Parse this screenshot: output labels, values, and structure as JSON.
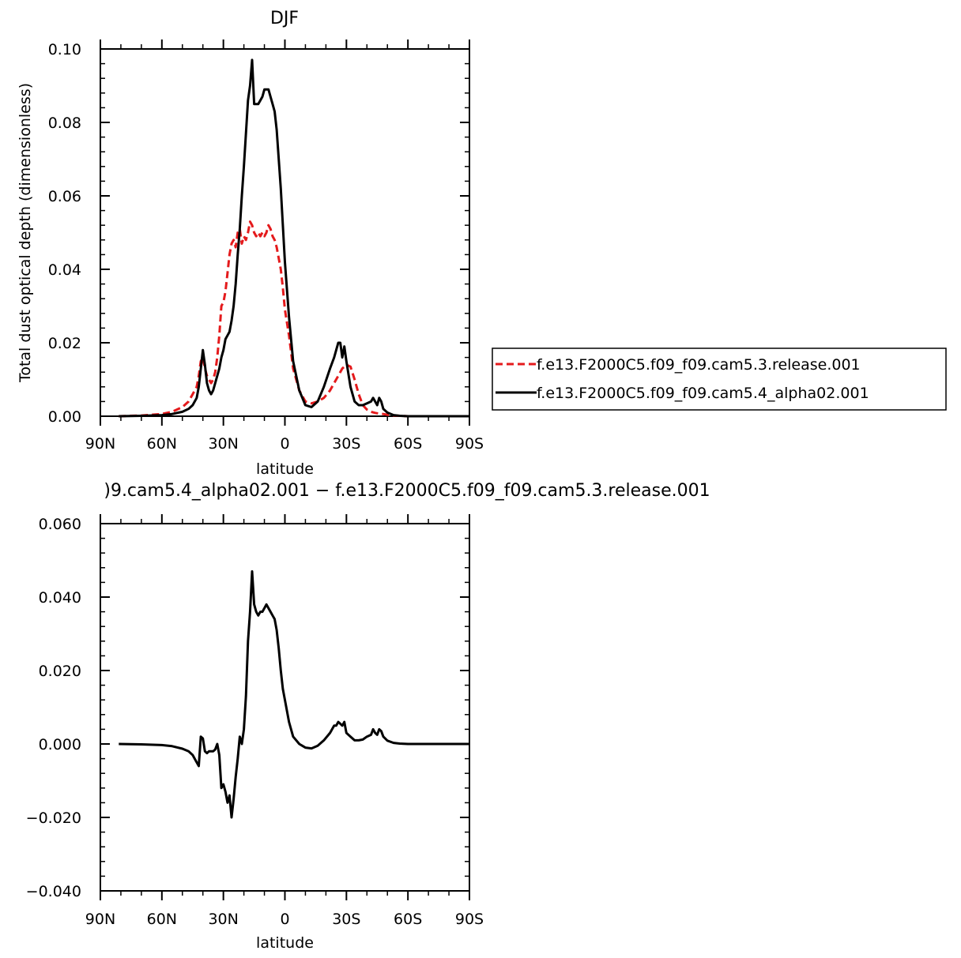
{
  "chart_data": [
    {
      "type": "line",
      "title": "DJF",
      "xlabel": "latitude",
      "ylabel": "Total dust optical depth (dimensionless)",
      "xlim": [
        90,
        -90
      ],
      "ylim": [
        0.0,
        0.1
      ],
      "xticks": [
        90,
        60,
        30,
        0,
        -30,
        -60,
        -90
      ],
      "xtick_labels": [
        "90N",
        "60N",
        "30N",
        "0",
        "30S",
        "60S",
        "90S"
      ],
      "yticks": [
        0.0,
        0.02,
        0.04,
        0.06,
        0.08,
        0.1
      ],
      "ytick_labels": [
        "0.00",
        "0.02",
        "0.04",
        "0.06",
        "0.08",
        "0.10"
      ],
      "legend_position": "right",
      "series": [
        {
          "name": "f.e13.F2000C5.f09_f09.cam5.3.release.001",
          "color": "#e41a1c",
          "style": "dashed",
          "x": [
            81,
            70,
            60,
            55,
            50,
            47,
            45,
            43,
            42,
            41,
            40,
            39,
            38,
            37,
            36,
            35,
            34,
            33,
            32,
            31,
            30,
            29,
            28,
            27,
            26,
            25,
            24,
            23,
            22,
            21,
            20,
            19,
            18,
            17,
            16,
            15,
            14,
            13,
            12,
            11,
            10,
            9,
            8,
            7,
            6,
            5,
            4,
            3,
            2,
            1,
            0,
            -2,
            -4,
            -7,
            -10,
            -13,
            -16,
            -19,
            -22,
            -24,
            -26,
            -28,
            -30,
            -32,
            -34,
            -36,
            -38,
            -40,
            -42,
            -44,
            -46,
            -48,
            -50,
            -53,
            -56,
            -60,
            -70,
            -80,
            -90
          ],
          "y": [
            0.0,
            0.0002,
            0.0006,
            0.0012,
            0.0025,
            0.004,
            0.006,
            0.008,
            0.011,
            0.015,
            0.016,
            0.013,
            0.011,
            0.01,
            0.009,
            0.01,
            0.012,
            0.016,
            0.022,
            0.03,
            0.031,
            0.034,
            0.039,
            0.044,
            0.047,
            0.048,
            0.046,
            0.05,
            0.051,
            0.047,
            0.049,
            0.048,
            0.05,
            0.053,
            0.052,
            0.05,
            0.049,
            0.05,
            0.049,
            0.05,
            0.049,
            0.05,
            0.052,
            0.051,
            0.049,
            0.048,
            0.046,
            0.043,
            0.04,
            0.035,
            0.029,
            0.022,
            0.013,
            0.007,
            0.004,
            0.0035,
            0.004,
            0.005,
            0.007,
            0.009,
            0.011,
            0.013,
            0.014,
            0.0135,
            0.01,
            0.006,
            0.003,
            0.0018,
            0.0012,
            0.0009,
            0.0007,
            0.0006,
            0.0004,
            0.0002,
            0.0001,
            0.0,
            0.0,
            0.0,
            0.0
          ]
        },
        {
          "name": "f.e13.F2000C5.f09_f09.cam5.4_alpha02.001",
          "color": "#000000",
          "style": "solid",
          "x": [
            81,
            70,
            60,
            55,
            50,
            47,
            45,
            43,
            42,
            41,
            40,
            39,
            38,
            37,
            36,
            35,
            34,
            33,
            32,
            31,
            30,
            29,
            28,
            27,
            26,
            25,
            24,
            23,
            22,
            21,
            20,
            19,
            18,
            17,
            16,
            15,
            14,
            13,
            12,
            11,
            10,
            9,
            8,
            7,
            6,
            5,
            4,
            3,
            2,
            1,
            0,
            -2,
            -4,
            -7,
            -10,
            -13,
            -16,
            -19,
            -22,
            -24,
            -25,
            -26,
            -27,
            -28,
            -29,
            -30,
            -32,
            -34,
            -36,
            -38,
            -40,
            -42,
            -43,
            -44,
            -45,
            -46,
            -47,
            -48,
            -50,
            -53,
            -56,
            -60,
            -70,
            -80,
            -90
          ],
          "y": [
            0.0,
            0.0001,
            0.0003,
            0.0006,
            0.0012,
            0.002,
            0.003,
            0.005,
            0.008,
            0.013,
            0.018,
            0.014,
            0.009,
            0.007,
            0.006,
            0.007,
            0.009,
            0.011,
            0.013,
            0.016,
            0.018,
            0.021,
            0.022,
            0.023,
            0.026,
            0.03,
            0.036,
            0.044,
            0.051,
            0.06,
            0.068,
            0.077,
            0.086,
            0.09,
            0.097,
            0.085,
            0.085,
            0.085,
            0.086,
            0.087,
            0.089,
            0.089,
            0.089,
            0.087,
            0.085,
            0.083,
            0.078,
            0.07,
            0.062,
            0.052,
            0.042,
            0.027,
            0.015,
            0.007,
            0.003,
            0.0025,
            0.004,
            0.008,
            0.013,
            0.016,
            0.018,
            0.02,
            0.02,
            0.016,
            0.019,
            0.015,
            0.008,
            0.004,
            0.003,
            0.003,
            0.0035,
            0.004,
            0.005,
            0.004,
            0.003,
            0.005,
            0.004,
            0.002,
            0.001,
            0.0003,
            0.0001,
            0.0,
            0.0,
            0.0,
            0.0
          ]
        }
      ]
    },
    {
      "type": "line",
      "title": ")9.cam5.4_alpha02.001  −  f.e13.F2000C5.f09_f09.cam5.3.release.001",
      "xlabel": "latitude",
      "ylabel": "",
      "xlim": [
        90,
        -90
      ],
      "ylim": [
        -0.04,
        0.06
      ],
      "xticks": [
        90,
        60,
        30,
        0,
        -30,
        -60,
        -90
      ],
      "xtick_labels": [
        "90N",
        "60N",
        "30N",
        "0",
        "30S",
        "60S",
        "90S"
      ],
      "yticks": [
        -0.04,
        -0.02,
        0.0,
        0.02,
        0.04,
        0.06
      ],
      "ytick_labels": [
        "−0.040",
        "−0.020",
        "0.000",
        "0.020",
        "0.040",
        "0.060"
      ],
      "series": [
        {
          "color": "#000000",
          "style": "solid",
          "x": [
            81,
            70,
            60,
            55,
            50,
            47,
            45,
            43,
            42,
            41,
            40,
            39,
            38,
            37,
            36,
            35,
            34,
            33,
            32,
            31,
            30,
            29,
            28,
            27,
            26,
            25,
            24,
            23,
            22,
            21,
            20,
            19,
            18,
            17,
            16,
            15,
            14,
            13,
            12,
            11,
            10,
            9,
            8,
            7,
            6,
            5,
            4,
            3,
            2,
            1,
            0,
            -2,
            -4,
            -7,
            -10,
            -13,
            -16,
            -19,
            -22,
            -24,
            -25,
            -26,
            -27,
            -28,
            -29,
            -30,
            -32,
            -34,
            -36,
            -38,
            -40,
            -42,
            -43,
            -44,
            -45,
            -46,
            -47,
            -48,
            -50,
            -53,
            -56,
            -60,
            -70,
            -80,
            -90
          ],
          "y": [
            0.0,
            -0.0001,
            -0.0003,
            -0.0006,
            -0.0013,
            -0.002,
            -0.003,
            -0.005,
            -0.006,
            0.002,
            0.0015,
            -0.002,
            -0.0025,
            -0.002,
            -0.002,
            -0.002,
            -0.0015,
            0.0,
            -0.003,
            -0.012,
            -0.011,
            -0.013,
            -0.016,
            -0.014,
            -0.02,
            -0.015,
            -0.009,
            -0.004,
            0.002,
            0.0,
            0.004,
            0.013,
            0.028,
            0.036,
            0.047,
            0.038,
            0.036,
            0.035,
            0.036,
            0.036,
            0.037,
            0.038,
            0.037,
            0.036,
            0.035,
            0.034,
            0.031,
            0.026,
            0.02,
            0.015,
            0.012,
            0.006,
            0.002,
            0.0,
            -0.001,
            -0.0012,
            -0.0005,
            0.001,
            0.003,
            0.005,
            0.005,
            0.006,
            0.0055,
            0.005,
            0.006,
            0.003,
            0.002,
            0.001,
            0.001,
            0.0012,
            0.002,
            0.0025,
            0.004,
            0.003,
            0.0025,
            0.004,
            0.0035,
            0.002,
            0.0009,
            0.0003,
            0.0001,
            0.0,
            0.0,
            0.0,
            0.0
          ]
        }
      ]
    }
  ]
}
